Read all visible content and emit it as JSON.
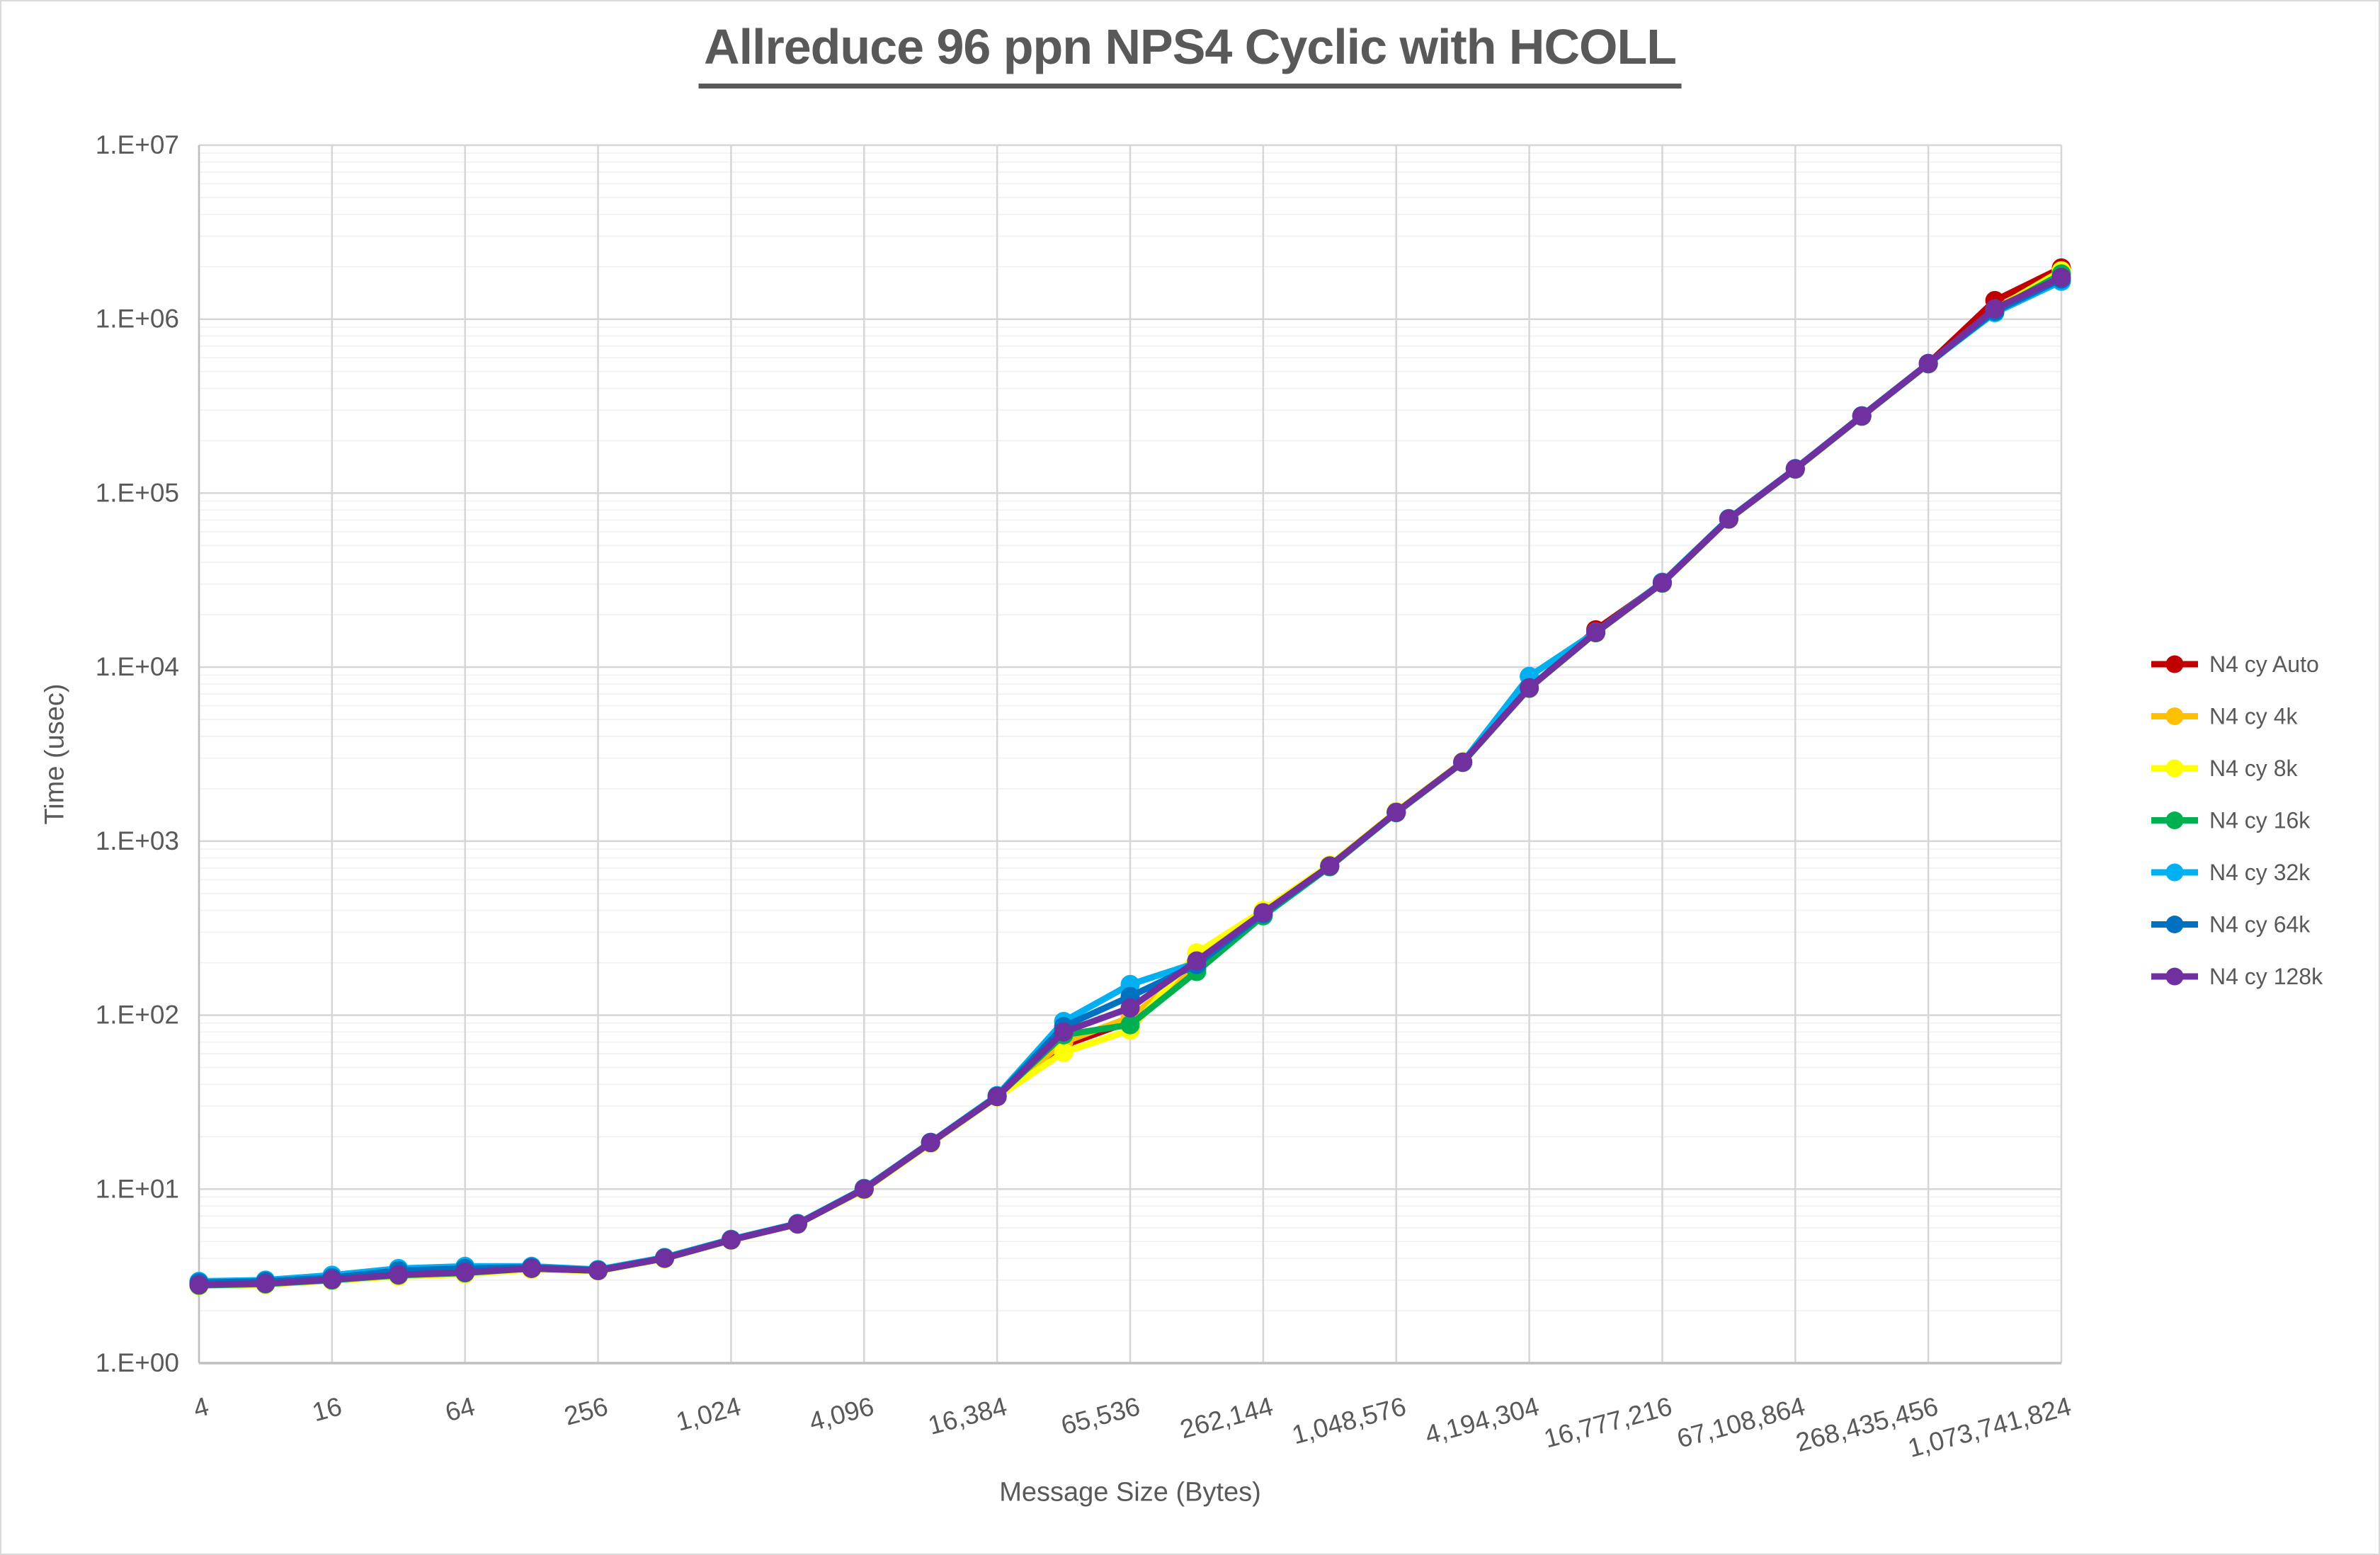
{
  "title": "Allreduce 96 ppn NPS4 Cyclic with HCOLL",
  "x_axis_title": "Message Size (Bytes)",
  "y_axis_title": "Time (usec)",
  "chart_data": {
    "type": "line",
    "x_scale": "log2",
    "y_scale": "log10",
    "ylim": [
      1,
      10000000
    ],
    "grid": "major-and-minor-log",
    "legend_position": "right",
    "title": "Allreduce 96 ppn NPS4 Cyclic with HCOLL",
    "xlabel": "Message Size (Bytes)",
    "ylabel": "Time (usec)",
    "x": [
      4,
      8,
      16,
      32,
      64,
      128,
      256,
      512,
      1024,
      2048,
      4096,
      8192,
      16384,
      32768,
      65536,
      131072,
      262144,
      524288,
      1048576,
      2097152,
      4194304,
      8388608,
      16777216,
      33554432,
      67108864,
      134217728,
      268435456,
      536870912,
      1073741824
    ],
    "x_tick_labels": [
      "4",
      "16",
      "64",
      "256",
      "1,024",
      "4,096",
      "16,384",
      "65,536",
      "262,144",
      "1,048,576",
      "4,194,304",
      "16,777,216",
      "67,108,864",
      "268,435,456",
      "1,073,741,824"
    ],
    "y_tick_labels": [
      "1.E+00",
      "1.E+01",
      "1.E+02",
      "1.E+03",
      "1.E+04",
      "1.E+05",
      "1.E+06",
      "1.E+07"
    ],
    "series": [
      {
        "name": "N4 cy Auto",
        "color": "#C00000",
        "values": [
          2.8,
          2.85,
          3.0,
          3.2,
          3.3,
          3.5,
          3.4,
          4.0,
          5.1,
          6.3,
          10,
          18.5,
          34,
          67,
          92,
          185,
          378,
          715,
          1460,
          2840,
          7550,
          16400,
          30500,
          71000,
          138000,
          278000,
          556000,
          1280000,
          1970000
        ]
      },
      {
        "name": "N4 cy 4k",
        "color": "#FFC000",
        "values": [
          2.8,
          2.85,
          3.0,
          3.2,
          3.3,
          3.5,
          3.4,
          4.0,
          5.1,
          6.3,
          10,
          18.5,
          34,
          70,
          97,
          192,
          395,
          725,
          1470,
          2850,
          7600,
          15800,
          30400,
          70800,
          137500,
          277000,
          555000,
          1140000,
          1900000
        ]
      },
      {
        "name": "N4 cy 8k",
        "color": "#FFFF00",
        "values": [
          2.78,
          2.83,
          2.98,
          3.15,
          3.25,
          3.45,
          3.38,
          3.98,
          5.08,
          6.28,
          9.9,
          18.3,
          33.8,
          61,
          82,
          228,
          400,
          730,
          1480,
          2860,
          7580,
          15700,
          30300,
          70700,
          137000,
          276000,
          554000,
          1135000,
          1890000
        ]
      },
      {
        "name": "N4 cy 16k",
        "color": "#00B050",
        "values": [
          2.8,
          2.85,
          3.0,
          3.2,
          3.3,
          3.5,
          3.4,
          4.0,
          5.1,
          6.3,
          10,
          18.5,
          34,
          77,
          88,
          178,
          372,
          712,
          1455,
          2830,
          7570,
          15750,
          30350,
          70900,
          137200,
          276500,
          553000,
          1120000,
          1820000
        ]
      },
      {
        "name": "N4 cy 32k",
        "color": "#00B0F0",
        "values": [
          2.95,
          3.0,
          3.2,
          3.5,
          3.6,
          3.6,
          3.45,
          4.05,
          5.15,
          6.35,
          10.1,
          18.6,
          34.5,
          92,
          150,
          200,
          385,
          720,
          1465,
          2845,
          8850,
          15900,
          30800,
          71500,
          138500,
          278500,
          557000,
          1090000,
          1650000
        ]
      },
      {
        "name": "N4 cy 64k",
        "color": "#0070C0",
        "values": [
          2.9,
          2.95,
          3.1,
          3.4,
          3.5,
          3.55,
          3.42,
          4.02,
          5.12,
          6.32,
          10.05,
          18.55,
          34.2,
          86,
          128,
          195,
          382,
          718,
          1462,
          2842,
          7620,
          15850,
          30600,
          71200,
          138200,
          278200,
          556500,
          1110000,
          1700000
        ]
      },
      {
        "name": "N4 cy 128k",
        "color": "#7030A0",
        "values": [
          2.82,
          2.87,
          3.02,
          3.22,
          3.32,
          3.5,
          3.4,
          4.0,
          5.1,
          6.3,
          10,
          18.5,
          34,
          80,
          110,
          205,
          388,
          720,
          1465,
          2845,
          7600,
          15820,
          30500,
          71000,
          138000,
          277500,
          555500,
          1150000,
          1740000
        ]
      }
    ],
    "style": {
      "major_grid_color": "#D6D6D6",
      "minor_grid_color": "#F0F0F0",
      "axis_line_color": "#BFBFBF",
      "text_color": "#595959",
      "line_width": 9,
      "marker_radius": 13.5
    }
  }
}
